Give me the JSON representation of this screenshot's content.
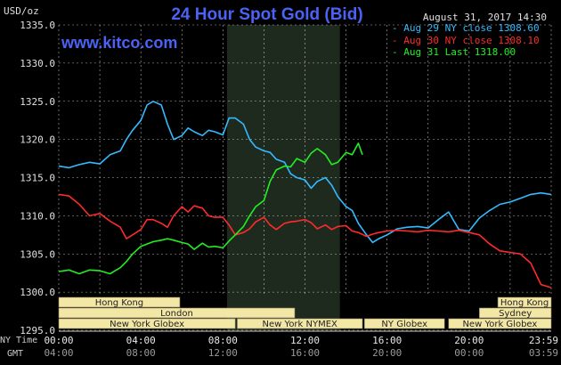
{
  "title": "24 Hour Spot Gold (Bid)",
  "unit_label": "USD/oz",
  "date_label": "August 31, 2017 14:30",
  "brand": "www.kitco.com",
  "legend": [
    {
      "label": "Aug 29 NY close",
      "value": "1308.60",
      "color": "#33bbff"
    },
    {
      "label": "Aug 30 NY close",
      "value": "1308.10",
      "color": "#ff2a2a"
    },
    {
      "label": "Aug 31 Last",
      "value": "1318.00",
      "color": "#22ee22"
    }
  ],
  "time_rows": [
    {
      "label": "NY Time",
      "ticks": [
        "00:00",
        "04:00",
        "08:00",
        "12:00",
        "16:00",
        "20:00",
        "23:59"
      ]
    },
    {
      "label": "GMT",
      "ticks": [
        "04:00",
        "08:00",
        "12:00",
        "16:00",
        "20:00",
        "00:00",
        "03:59"
      ]
    }
  ],
  "market_sessions": [
    {
      "name": "Hong Kong",
      "start_h": 0,
      "end_h": 5.9,
      "row": 0
    },
    {
      "name": "London",
      "start_h": 0,
      "end_h": 11.5,
      "row": 1
    },
    {
      "name": "New York Globex",
      "start_h": 0,
      "end_h": 8.6,
      "row": 2
    },
    {
      "name": "New York NYMEX",
      "start_h": 8.7,
      "end_h": 14.8,
      "row": 2
    },
    {
      "name": "NY Globex",
      "start_h": 14.9,
      "end_h": 18.8,
      "row": 2
    },
    {
      "name": "Hong Kong",
      "start_h": 21.4,
      "end_h": 24,
      "row": 0
    },
    {
      "name": "Sydney",
      "start_h": 20.5,
      "end_h": 24,
      "row": 1
    },
    {
      "name": "New York Globex",
      "start_h": 19.0,
      "end_h": 24,
      "row": 2
    }
  ],
  "colors": {
    "background": "#000000",
    "grid": "#ffffff",
    "nymex_shade": "#1f2a1f",
    "session_box": "#f3e7a5"
  },
  "chart_data": {
    "type": "line",
    "title": "24 Hour Spot Gold (Bid)",
    "ylabel": "USD/oz",
    "ylim": [
      1295.0,
      1335.0
    ],
    "yticks": [
      1295.0,
      1300.0,
      1305.0,
      1310.0,
      1315.0,
      1320.0,
      1325.0,
      1330.0,
      1335.0
    ],
    "xlim_hours": [
      0,
      24
    ],
    "x_unit": "hours since 00:00 NY time",
    "grid": true,
    "legend_position": "top-right",
    "highlight_band_hours": [
      8.2,
      13.7
    ],
    "series": [
      {
        "name": "Aug 29 NY close 1308.60",
        "color": "#33bbff",
        "x": [
          0,
          0.5,
          1,
          1.5,
          2,
          2.5,
          3,
          3.3,
          3.6,
          4,
          4.3,
          4.6,
          5,
          5.3,
          5.6,
          6,
          6.3,
          6.6,
          7,
          7.3,
          7.6,
          8,
          8.3,
          8.6,
          9,
          9.3,
          9.6,
          10,
          10.3,
          10.6,
          11,
          11.3,
          11.6,
          12,
          12.3,
          12.6,
          13,
          13.3,
          13.6,
          14,
          14.3,
          14.6,
          15,
          15.3,
          15.6,
          16,
          16.5,
          17,
          17.5,
          18,
          18.5,
          19,
          19.5,
          20,
          20.5,
          21,
          21.5,
          22,
          22.5,
          23,
          23.5,
          23.99
        ],
        "y": [
          1316.5,
          1316.3,
          1316.7,
          1317.0,
          1316.8,
          1318.0,
          1318.5,
          1320.0,
          1321.2,
          1322.5,
          1324.5,
          1325.0,
          1324.5,
          1322.0,
          1320.0,
          1320.5,
          1321.5,
          1321.0,
          1320.5,
          1321.2,
          1321.0,
          1320.6,
          1322.8,
          1322.8,
          1322.0,
          1320.0,
          1319.0,
          1318.5,
          1318.3,
          1317.4,
          1317.0,
          1315.5,
          1315.0,
          1314.7,
          1313.6,
          1314.5,
          1315.0,
          1314.0,
          1312.5,
          1311.2,
          1310.7,
          1309.0,
          1307.5,
          1306.5,
          1307.0,
          1307.5,
          1308.3,
          1308.5,
          1308.6,
          1308.4,
          1309.5,
          1310.5,
          1308.2,
          1308.0,
          1309.7,
          1310.7,
          1311.5,
          1311.8,
          1312.3,
          1312.8,
          1313.0,
          1312.8
        ]
      },
      {
        "name": "Aug 30 NY close 1308.10",
        "color": "#ff2a2a",
        "x": [
          0,
          0.5,
          1,
          1.5,
          2,
          2.5,
          3,
          3.3,
          3.6,
          4,
          4.3,
          4.6,
          5,
          5.3,
          5.6,
          6,
          6.3,
          6.6,
          7,
          7.3,
          7.6,
          8,
          8.3,
          8.6,
          9,
          9.3,
          9.6,
          10,
          10.3,
          10.6,
          11,
          11.3,
          11.6,
          12,
          12.3,
          12.6,
          13,
          13.3,
          13.6,
          14,
          14.3,
          14.6,
          15,
          15.3,
          15.6,
          16,
          16.5,
          17,
          17.5,
          18,
          18.5,
          19,
          19.5,
          20,
          20.5,
          21,
          21.5,
          22,
          22.5,
          23,
          23.5,
          23.99
        ],
        "y": [
          1312.8,
          1312.6,
          1311.5,
          1310.0,
          1310.3,
          1309.3,
          1308.5,
          1307.0,
          1307.5,
          1308.2,
          1309.5,
          1309.5,
          1309.0,
          1308.5,
          1310.0,
          1311.2,
          1310.5,
          1311.3,
          1311.0,
          1310.0,
          1309.8,
          1309.8,
          1308.8,
          1307.5,
          1307.8,
          1308.3,
          1309.2,
          1309.8,
          1308.8,
          1308.2,
          1309.0,
          1309.2,
          1309.3,
          1309.5,
          1309.1,
          1308.3,
          1308.8,
          1308.2,
          1308.6,
          1308.7,
          1308.0,
          1307.8,
          1307.3,
          1307.6,
          1307.8,
          1308.0,
          1308.1,
          1308.0,
          1307.9,
          1308.1,
          1308.0,
          1307.9,
          1308.1,
          1307.8,
          1307.5,
          1306.3,
          1305.4,
          1305.2,
          1305.0,
          1303.8,
          1301.0,
          1300.6
        ]
      },
      {
        "name": "Aug 31 Last 1318.00",
        "color": "#22ee22",
        "x": [
          0,
          0.5,
          1,
          1.5,
          2,
          2.5,
          3,
          3.3,
          3.6,
          4,
          4.3,
          4.6,
          5,
          5.3,
          5.6,
          6,
          6.3,
          6.6,
          7,
          7.3,
          7.6,
          8,
          8.3,
          8.6,
          9,
          9.3,
          9.6,
          10,
          10.3,
          10.6,
          11,
          11.3,
          11.6,
          12,
          12.3,
          12.6,
          13,
          13.3,
          13.6,
          14,
          14.3,
          14.6,
          14.8
        ],
        "y": [
          1302.7,
          1302.9,
          1302.4,
          1302.9,
          1302.8,
          1302.4,
          1303.2,
          1304.0,
          1305.0,
          1306.0,
          1306.3,
          1306.6,
          1306.8,
          1307.0,
          1306.8,
          1306.5,
          1306.3,
          1305.6,
          1306.4,
          1305.9,
          1306.0,
          1305.8,
          1306.7,
          1307.5,
          1308.6,
          1310.0,
          1311.2,
          1312.0,
          1314.5,
          1316.0,
          1316.5,
          1316.4,
          1317.5,
          1317.0,
          1318.2,
          1318.8,
          1318.0,
          1316.7,
          1317.0,
          1318.3,
          1318.0,
          1319.5,
          1318.0
        ]
      }
    ]
  }
}
